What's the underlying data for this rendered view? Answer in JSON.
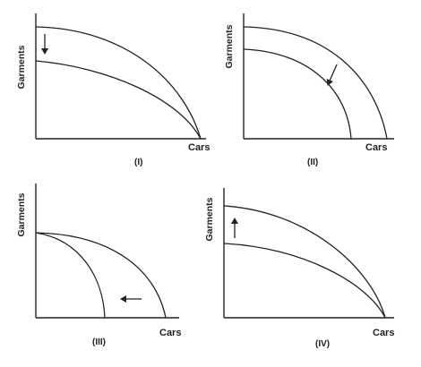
{
  "panels": [
    {
      "id": "I",
      "y_label": "Garments",
      "x_label": "Cars",
      "panel_label": "(I)",
      "arrow": "down"
    },
    {
      "id": "II",
      "y_label": "Garments",
      "x_label": "Cars",
      "panel_label": "(II)",
      "arrow": "down-left"
    },
    {
      "id": "III",
      "y_label": "Garments",
      "x_label": "Cars",
      "panel_label": "(III)",
      "arrow": "left"
    },
    {
      "id": "IV",
      "y_label": "Garments",
      "x_label": "Cars",
      "panel_label": "(IV)",
      "arrow": "up"
    }
  ],
  "arrow_icon": "arrow-icon",
  "line_color": "#222222"
}
